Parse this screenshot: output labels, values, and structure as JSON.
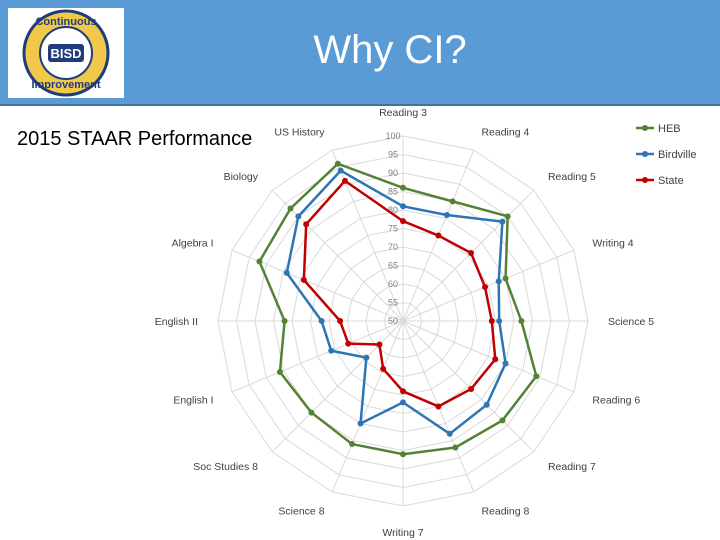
{
  "header": {
    "title": "Why CI?"
  },
  "logo": {
    "top_text": "Continuous",
    "center_text": "BISD",
    "bottom_text": "Improvement"
  },
  "slide": {
    "subtitle": "2015 STAAR Performance"
  },
  "colors": {
    "header_bg": "#5b9bd5",
    "heb": "#548235",
    "birdville": "#2e75b6",
    "state": "#c00000",
    "grid": "#d9d9d9"
  },
  "chart_data": {
    "type": "radar",
    "categories": [
      "Reading 3",
      "Reading 4",
      "Reading 5",
      "Writing 4",
      "Science 5",
      "Reading 6",
      "Reading 7",
      "Reading 8",
      "Writing 7",
      "Science 8",
      "Soc Studies 8",
      "English I",
      "English II",
      "Algebra I",
      "Biology",
      "US History"
    ],
    "rlim": [
      50,
      100
    ],
    "ticks": [
      50,
      55,
      60,
      65,
      70,
      75,
      80,
      85,
      90,
      95,
      100
    ],
    "legend_position": "top-right",
    "series": [
      {
        "name": "HEB",
        "color": "#548235",
        "values": [
          86,
          85,
          90,
          80,
          82,
          89,
          88,
          87,
          86,
          86,
          85,
          86,
          82,
          92,
          93,
          96
        ]
      },
      {
        "name": "Birdville",
        "color": "#2e75b6",
        "values": [
          81,
          81,
          88,
          78,
          76,
          80,
          82,
          83,
          72,
          80,
          64,
          71,
          72,
          84,
          90,
          94
        ]
      },
      {
        "name": "State",
        "color": "#c00000",
        "values": [
          77,
          75,
          76,
          74,
          74,
          77,
          76,
          75,
          69,
          64,
          59,
          66,
          67,
          79,
          87,
          91
        ]
      }
    ]
  }
}
